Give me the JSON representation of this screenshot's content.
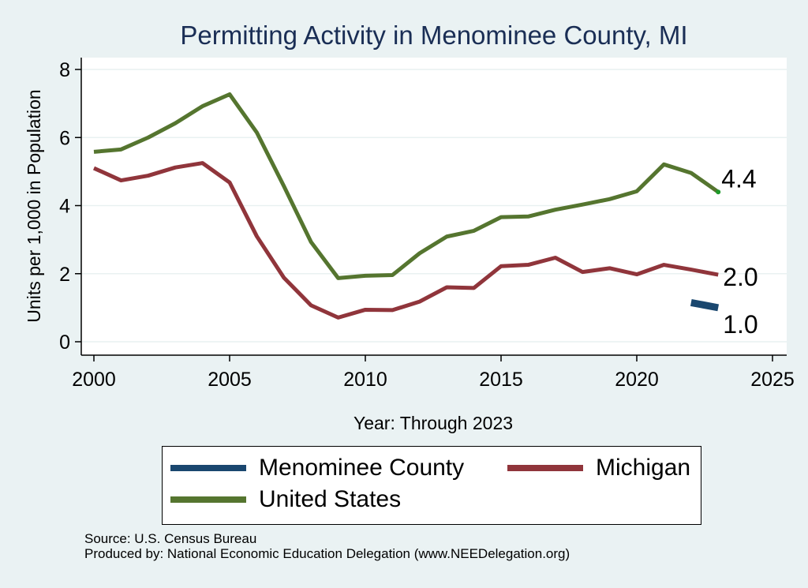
{
  "chart_data": {
    "type": "line",
    "title": "Permitting Activity in Menominee County, MI",
    "xlabel": "Year: Through 2023",
    "ylabel": "Units per 1,000 in Population",
    "xlim": [
      2000,
      2025
    ],
    "ylim": [
      0,
      8
    ],
    "xticks": [
      2000,
      2005,
      2010,
      2015,
      2020,
      2025
    ],
    "yticks": [
      0,
      2,
      4,
      6,
      8
    ],
    "grid": true,
    "series": [
      {
        "name": "Menominee County",
        "color": "#1a476f",
        "x": [
          2022,
          2023
        ],
        "values": [
          1.15,
          1.0
        ],
        "end_label": "1.0"
      },
      {
        "name": "Michigan",
        "color": "#90353b",
        "x": [
          2000,
          2001,
          2002,
          2003,
          2004,
          2005,
          2006,
          2007,
          2008,
          2009,
          2010,
          2011,
          2012,
          2013,
          2014,
          2015,
          2016,
          2017,
          2018,
          2019,
          2020,
          2021,
          2022,
          2023
        ],
        "values": [
          5.1,
          4.74,
          4.88,
          5.12,
          5.25,
          4.68,
          3.1,
          1.88,
          1.07,
          0.71,
          0.94,
          0.93,
          1.18,
          1.6,
          1.58,
          2.22,
          2.26,
          2.47,
          2.05,
          2.16,
          1.98,
          2.26,
          2.12,
          1.97
        ],
        "end_label": "2.0"
      },
      {
        "name": "United States",
        "color": "#55752f",
        "x": [
          2000,
          2001,
          2002,
          2003,
          2004,
          2005,
          2006,
          2007,
          2008,
          2009,
          2010,
          2011,
          2012,
          2013,
          2014,
          2015,
          2016,
          2017,
          2018,
          2019,
          2020,
          2021,
          2022,
          2023
        ],
        "values": [
          5.58,
          5.65,
          6.0,
          6.42,
          6.92,
          7.27,
          6.15,
          4.57,
          2.93,
          1.87,
          1.94,
          1.96,
          2.6,
          3.09,
          3.26,
          3.66,
          3.68,
          3.88,
          4.03,
          4.19,
          4.42,
          5.21,
          4.96,
          4.4
        ],
        "end_label": "4.4"
      }
    ]
  },
  "legend": {
    "items": [
      {
        "label": "Menominee County",
        "color": "#1a476f"
      },
      {
        "label": "Michigan",
        "color": "#90353b"
      },
      {
        "label": "United States",
        "color": "#55752f"
      }
    ]
  },
  "footer": {
    "source": "Source: U.S. Census Bureau",
    "produced": "Produced by: National Economic Education Delegation (www.NEEDelegation.org)"
  }
}
